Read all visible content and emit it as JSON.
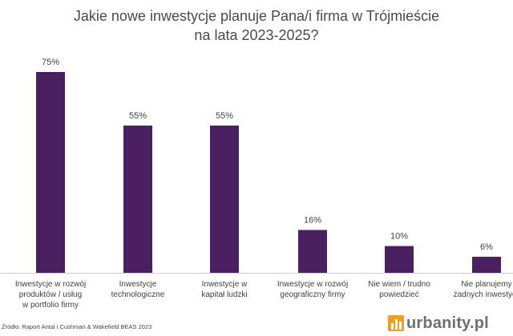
{
  "chart_data": {
    "type": "bar",
    "title_lines": [
      "Jakie nowe inwestycje planuje Pana/i firma w Trójmieście",
      "na lata 2023-2025?"
    ],
    "categories": [
      [
        "Inwestycje w rozwój",
        "produktów / usług",
        "w portfolio firmy"
      ],
      [
        "Inwestycje",
        "technologiczne"
      ],
      [
        "Inwestycje w",
        "kapitał ludzki"
      ],
      [
        "Inwestycje w rozwój",
        "geograficzny firmy"
      ],
      [
        "Nie  wiem / trudno",
        "powiedzieć"
      ],
      [
        "Nie planujemy",
        "żadnych inwestycji"
      ]
    ],
    "values": [
      75,
      55,
      55,
      16,
      10,
      6
    ],
    "value_labels": [
      "75%",
      "55%",
      "55%",
      "16%",
      "10%",
      "6%"
    ],
    "ylim": [
      0,
      75
    ],
    "bar_color": "#4b2060",
    "grid": false,
    "legend": "none"
  },
  "source": "Źródło: Raport Antal i Cushman & Wakefield BEAS 2023",
  "watermark": "urbanity.pl",
  "colors": {
    "bar": "#4b2060",
    "text": "#404040",
    "watermark_icon": "#f0a020"
  }
}
